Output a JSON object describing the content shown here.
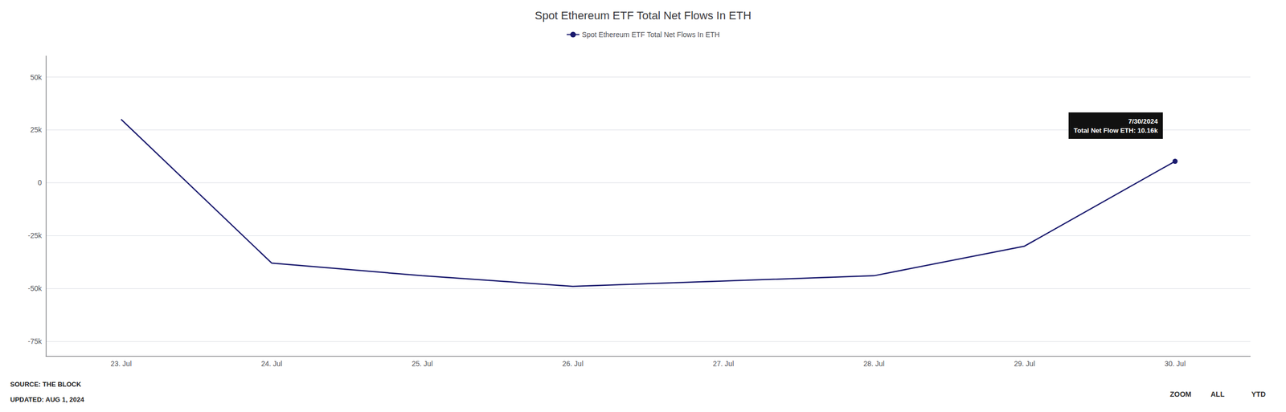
{
  "chart_data": {
    "type": "line",
    "title": "Spot Ethereum ETF Total Net Flows In ETH",
    "categories": [
      "23. Jul",
      "24. Jul",
      "25. Jul",
      "26. Jul",
      "27. Jul",
      "28. Jul",
      "29. Jul",
      "30. Jul"
    ],
    "series": [
      {
        "name": "Spot Ethereum ETF Total Net Flows In ETH",
        "color": "#1a1a6e",
        "values": [
          30000,
          -38000,
          -44000,
          -49000,
          -46500,
          -44000,
          -30000,
          10160
        ]
      }
    ],
    "ylim": [
      -82000,
      60000
    ],
    "yticks": [
      {
        "value": -75000,
        "label": "-75k"
      },
      {
        "value": -50000,
        "label": "-50k"
      },
      {
        "value": -25000,
        "label": "-25k"
      },
      0,
      {
        "value": 25000,
        "label": "25k"
      },
      {
        "value": 50000,
        "label": "50k"
      }
    ],
    "grid": true,
    "legend": "top",
    "annotations": [
      {
        "text": "7/30/2024\nTotal Net Flow ETH: 10.16k",
        "x": "30. Jul",
        "y": 10160
      },
      {
        "text": "SOURCE: THE BLOCK"
      },
      {
        "text": "UPDATED: AUG 1, 2024"
      },
      {
        "text": "ZOOM"
      },
      {
        "text": "ALL"
      },
      {
        "text": "YTD"
      }
    ]
  }
}
